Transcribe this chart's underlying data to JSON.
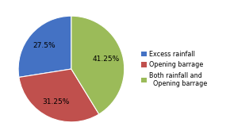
{
  "labels": [
    "Excess rainfall",
    "Opening barrage",
    "Both rainfall and\nOpening barrage"
  ],
  "values": [
    27.5,
    31.25,
    41.25
  ],
  "colors": [
    "#4472C4",
    "#C0504D",
    "#9BBB59"
  ],
  "legend_labels": [
    "Excess rainfall",
    "Opening barrage",
    "Both rainfall and\n  Opening barrage"
  ],
  "background_color": "#FFFFFF",
  "startangle": 90,
  "text_color": "#000000",
  "fontsize": 6.5,
  "legend_fontsize": 5.8
}
